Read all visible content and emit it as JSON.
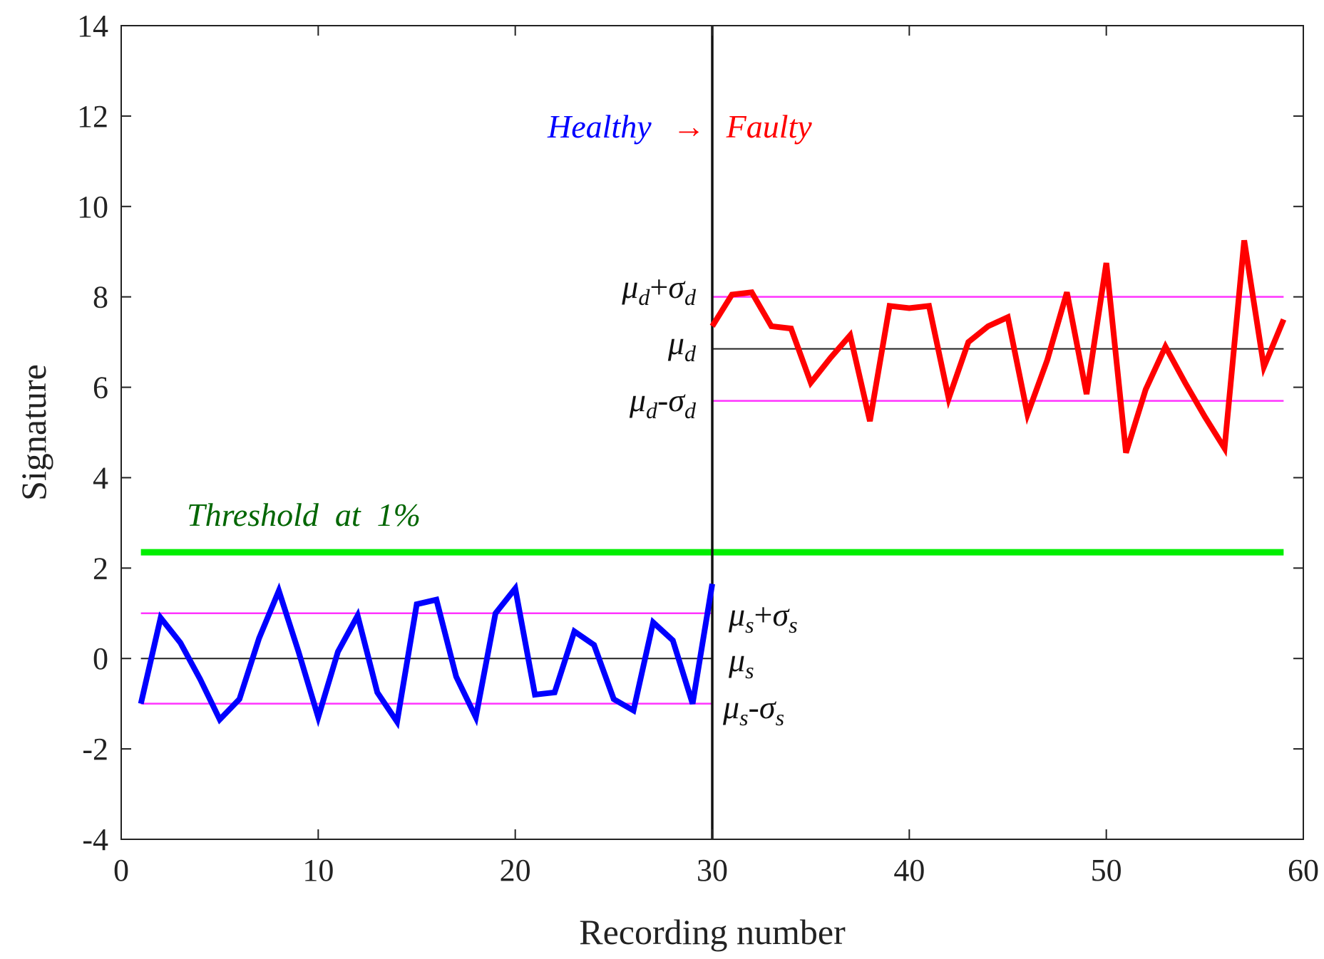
{
  "chart_data": {
    "type": "line",
    "xlabel": "Recording number",
    "ylabel": "Signature",
    "xlim": [
      0,
      60
    ],
    "ylim": [
      -4,
      14
    ],
    "xticks": [
      "0",
      "10",
      "20",
      "30",
      "40",
      "50",
      "60"
    ],
    "yticks": [
      "-4",
      "-2",
      "0",
      "2",
      "4",
      "6",
      "8",
      "10",
      "12",
      "14"
    ],
    "series": [
      {
        "name": "Healthy",
        "color": "#0000ff",
        "x": [
          1,
          2,
          3,
          4,
          5,
          6,
          7,
          8,
          9,
          10,
          11,
          12,
          13,
          14,
          15,
          16,
          17,
          18,
          19,
          20,
          21,
          22,
          23,
          24,
          25,
          26,
          27,
          28,
          29,
          30
        ],
        "values": [
          -1.0,
          0.9,
          0.35,
          -0.45,
          -1.35,
          -0.9,
          0.45,
          1.5,
          0.15,
          -1.3,
          0.15,
          0.95,
          -0.75,
          -1.4,
          1.2,
          1.3,
          -0.4,
          -1.3,
          1.0,
          1.55,
          -0.8,
          -0.75,
          0.6,
          0.3,
          -0.9,
          -1.15,
          0.8,
          0.4,
          -1.0,
          1.65
        ]
      },
      {
        "name": "Faulty",
        "color": "#ff0000",
        "x": [
          30,
          31,
          32,
          33,
          34,
          35,
          36,
          37,
          38,
          39,
          40,
          41,
          42,
          43,
          44,
          45,
          46,
          47,
          48,
          49,
          50,
          51,
          52,
          53,
          54,
          55,
          56,
          57,
          58,
          59
        ],
        "values": [
          7.35,
          8.05,
          8.1,
          7.35,
          7.3,
          6.1,
          6.65,
          7.15,
          5.25,
          7.8,
          7.75,
          7.8,
          5.75,
          7.0,
          7.35,
          7.55,
          5.4,
          6.6,
          8.1,
          5.85,
          8.75,
          4.55,
          5.95,
          6.9,
          6.1,
          5.35,
          4.65,
          9.25,
          6.45,
          7.5
        ]
      }
    ],
    "reference_lines": [
      {
        "name": "mu_s + sigma_s",
        "y": 1.0,
        "x_range": [
          1,
          30
        ],
        "color": "#ff33ff"
      },
      {
        "name": "mu_s",
        "y": 0.0,
        "x_range": [
          1,
          30
        ],
        "color": "#222222"
      },
      {
        "name": "mu_s - sigma_s",
        "y": -1.0,
        "x_range": [
          1,
          30
        ],
        "color": "#ff33ff"
      },
      {
        "name": "mu_d + sigma_d",
        "y": 8.0,
        "x_range": [
          30,
          59
        ],
        "color": "#ff33ff"
      },
      {
        "name": "mu_d",
        "y": 6.85,
        "x_range": [
          30,
          59
        ],
        "color": "#222222"
      },
      {
        "name": "mu_d - sigma_d",
        "y": 5.7,
        "x_range": [
          30,
          59
        ],
        "color": "#ff33ff"
      },
      {
        "name": "Threshold at 1%",
        "y": 2.35,
        "x_range": [
          1,
          59
        ],
        "color": "#00ee00"
      }
    ],
    "vertical_line": {
      "x": 30,
      "color": "#111111"
    },
    "annotations": {
      "healthy": "Healthy",
      "arrow": "→",
      "faulty": "Faulty",
      "threshold": "Threshold  at  1%",
      "mu": "μ",
      "sigma": "σ",
      "plus": "+",
      "minus": "-",
      "sub_d": "d",
      "sub_s": "s"
    }
  }
}
